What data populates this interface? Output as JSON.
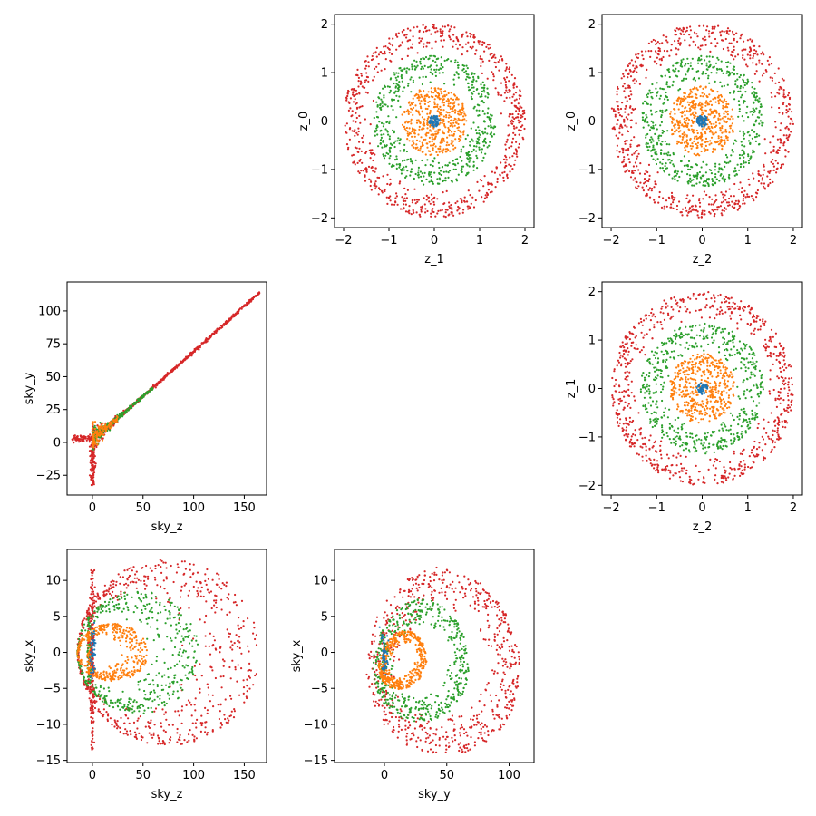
{
  "colors": {
    "blue": "#1f77b4",
    "orange": "#ff7f0e",
    "green": "#2ca02c",
    "red": "#d62728"
  },
  "chart_data": [
    {
      "id": "z1-z0",
      "type": "scatter",
      "xlabel": "z_1",
      "ylabel": "z_0",
      "xlim": [
        -2.2,
        2.2
      ],
      "ylim": [
        -2.2,
        2.2
      ],
      "xticks": [
        -2,
        -1,
        0,
        1,
        2
      ],
      "xtick_labels": [
        "−2",
        "−1",
        "0",
        "1",
        "2"
      ],
      "yticks": [
        -2,
        -1,
        0,
        1,
        2
      ],
      "ytick_labels": [
        "−2",
        "−1",
        "0",
        "1",
        "2"
      ],
      "series": [
        {
          "color": "red",
          "shape": "ring",
          "r_min": 1.4,
          "r_max": 2.0,
          "count": 700
        },
        {
          "color": "green",
          "shape": "ring",
          "r_min": 0.75,
          "r_max": 1.35,
          "count": 550
        },
        {
          "color": "orange",
          "shape": "ring",
          "r_min": 0.0,
          "r_max": 0.72,
          "count": 450
        },
        {
          "color": "blue",
          "shape": "ring",
          "r_min": 0.0,
          "r_max": 0.12,
          "count": 60
        }
      ]
    },
    {
      "id": "z2-z0",
      "type": "scatter",
      "xlabel": "z_2",
      "ylabel": "z_0",
      "xlim": [
        -2.2,
        2.2
      ],
      "ylim": [
        -2.2,
        2.2
      ],
      "xticks": [
        -2,
        -1,
        0,
        1,
        2
      ],
      "xtick_labels": [
        "−2",
        "−1",
        "0",
        "1",
        "2"
      ],
      "yticks": [
        -2,
        -1,
        0,
        1,
        2
      ],
      "ytick_labels": [
        "−2",
        "−1",
        "0",
        "1",
        "2"
      ],
      "series": [
        {
          "color": "red",
          "shape": "ring",
          "r_min": 1.4,
          "r_max": 2.0,
          "count": 700
        },
        {
          "color": "green",
          "shape": "ring",
          "r_min": 0.75,
          "r_max": 1.35,
          "count": 550
        },
        {
          "color": "orange",
          "shape": "ring",
          "r_min": 0.0,
          "r_max": 0.72,
          "count": 450
        },
        {
          "color": "blue",
          "shape": "ring",
          "r_min": 0.0,
          "r_max": 0.12,
          "count": 60
        }
      ]
    },
    {
      "id": "z2-z1",
      "type": "scatter",
      "xlabel": "z_2",
      "ylabel": "z_1",
      "xlim": [
        -2.2,
        2.2
      ],
      "ylim": [
        -2.2,
        2.2
      ],
      "xticks": [
        -2,
        -1,
        0,
        1,
        2
      ],
      "xtick_labels": [
        "−2",
        "−1",
        "0",
        "1",
        "2"
      ],
      "yticks": [
        -2,
        -1,
        0,
        1,
        2
      ],
      "ytick_labels": [
        "−2",
        "−1",
        "0",
        "1",
        "2"
      ],
      "series": [
        {
          "color": "red",
          "shape": "ring",
          "r_min": 1.4,
          "r_max": 2.0,
          "count": 700
        },
        {
          "color": "green",
          "shape": "ring",
          "r_min": 0.75,
          "r_max": 1.35,
          "count": 550
        },
        {
          "color": "orange",
          "shape": "ring",
          "r_min": 0.0,
          "r_max": 0.72,
          "count": 450
        },
        {
          "color": "blue",
          "shape": "ring",
          "r_min": 0.0,
          "r_max": 0.12,
          "count": 60
        }
      ]
    },
    {
      "id": "skyz-skyy",
      "type": "scatter",
      "xlabel": "sky_z",
      "ylabel": "sky_y",
      "xlim": [
        -25,
        172
      ],
      "ylim": [
        -40,
        122
      ],
      "xticks": [
        0,
        50,
        100,
        150
      ],
      "xtick_labels": [
        "0",
        "50",
        "100",
        "150"
      ],
      "yticks": [
        -25,
        0,
        25,
        50,
        75,
        100
      ],
      "ytick_labels": [
        "−25",
        "0",
        "25",
        "50",
        "75",
        "100"
      ],
      "series": [
        {
          "color": "red",
          "shape": "curve",
          "count": 900
        },
        {
          "color": "green",
          "shape": "curve",
          "count": 250
        },
        {
          "color": "orange",
          "shape": "curve",
          "count": 150
        }
      ]
    },
    {
      "id": "skyz-skyx",
      "type": "scatter",
      "xlabel": "sky_z",
      "ylabel": "sky_x",
      "xlim": [
        -25,
        172
      ],
      "ylim": [
        -15.3,
        14.3
      ],
      "xticks": [
        0,
        50,
        100,
        150
      ],
      "xtick_labels": [
        "0",
        "50",
        "100",
        "150"
      ],
      "yticks": [
        -15,
        -10,
        -5,
        0,
        5,
        10
      ],
      "ytick_labels": [
        "−15",
        "−10",
        "−5",
        "0",
        "5",
        "10"
      ],
      "series": [
        {
          "color": "red",
          "shape": "lobe",
          "zmax": 165,
          "xmax": 13,
          "count": 650
        },
        {
          "color": "green",
          "shape": "lobe",
          "zmax": 105,
          "xmax": 8.5,
          "count": 500
        },
        {
          "color": "orange",
          "shape": "lobe",
          "zmax": 55,
          "xmax": 4,
          "count": 420
        },
        {
          "color": "red",
          "shape": "spike",
          "count": 160
        },
        {
          "color": "blue",
          "shape": "spot",
          "count": 50
        }
      ]
    },
    {
      "id": "skyy-skyx",
      "type": "scatter",
      "xlabel": "sky_y",
      "ylabel": "sky_x",
      "xlim": [
        -40,
        120
      ],
      "ylim": [
        -15.3,
        14.3
      ],
      "xticks": [
        0,
        50,
        100
      ],
      "xtick_labels": [
        "0",
        "50",
        "100"
      ],
      "yticks": [
        -15,
        -10,
        -5,
        0,
        5,
        10
      ],
      "ytick_labels": [
        "−15",
        "−10",
        "−5",
        "0",
        "5",
        "10"
      ],
      "series": [
        {
          "color": "red",
          "shape": "teardrop",
          "ymax": 112,
          "xmax": 13,
          "count": 650
        },
        {
          "color": "green",
          "shape": "teardrop",
          "ymax": 70,
          "xmax": 8.5,
          "count": 500
        },
        {
          "color": "orange",
          "shape": "teardrop",
          "ymax": 35,
          "xmax": 4,
          "count": 420
        },
        {
          "color": "blue",
          "shape": "spot",
          "count": 50
        }
      ]
    }
  ]
}
